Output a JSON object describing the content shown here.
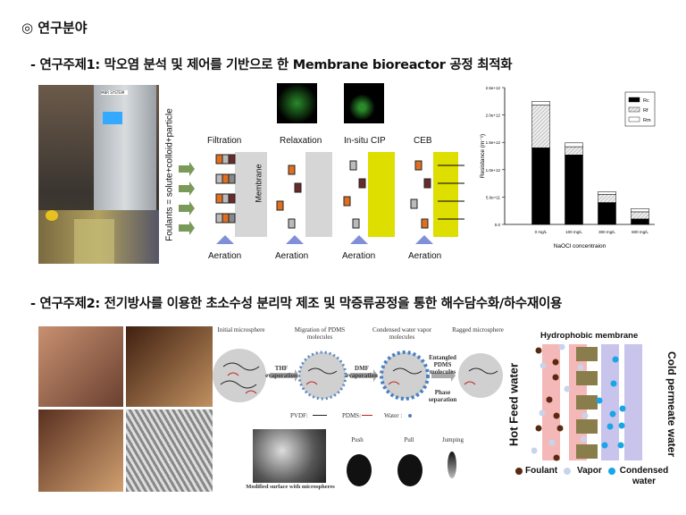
{
  "section_title": "◎ 연구분야",
  "topic1": {
    "title": "- 연구주제1: 막오염 분석 및 제어를 기반으로 한 Membrane bioreactor 공정 최적화",
    "photo_panel_label": "MBR SYSTEM",
    "diagram": {
      "side_label": "Foulants = solute+colloid+particle",
      "stages": [
        "Filtration",
        "Relaxation",
        "In-situ CIP",
        "CEB"
      ],
      "membrane_label": "Membrane",
      "aeration_label": "Aeration"
    }
  },
  "chart_data": {
    "type": "bar",
    "stacked": true,
    "categories": [
      "0 mg/L",
      "100 mg/L",
      "300 mg/L",
      "600 mg/L"
    ],
    "series": [
      {
        "name": "Rc",
        "values": [
          1400000000000.0,
          1270000000000.0,
          400000000000.0,
          100000000000.0
        ],
        "color": "#000000"
      },
      {
        "name": "Rf",
        "values": [
          780000000000.0,
          150000000000.0,
          150000000000.0,
          130000000000.0
        ],
        "color": "#d8d8d8"
      },
      {
        "name": "Rm",
        "values": [
          70000000000.0,
          70000000000.0,
          50000000000.0,
          60000000000.0
        ],
        "color": "#ffffff"
      }
    ],
    "xlabel": "NaOCl concentraion",
    "ylabel": "Resistance (m⁻¹)",
    "ylim": [
      0,
      2500000000000.0
    ],
    "yticks": [
      "0.0",
      "5.0e+11",
      "1.0e+12",
      "1.5e+12",
      "2.0e+12",
      "2.5e+12"
    ],
    "legend_position": "top-right",
    "grid": false
  },
  "topic2": {
    "title": "- 연구주제2: 전기방사를 이용한 초소수성 분리막 제조 및 막증류공정을 통한 해수담수화/하수재이용",
    "scheme": {
      "stages": [
        "Initial microsphere",
        "Migration of PDMS molecules",
        "Condensed water vapor molecules",
        "Ragged microsphere"
      ],
      "arrows": [
        "THF evaporation",
        "DMF evaporation",
        "Entangled PDMS molecules",
        "Phase separation"
      ],
      "legend": [
        "PVDF:",
        "PDMS:",
        "Water :"
      ],
      "sem_caption": "Modified surface with microspheres",
      "drop_labels": [
        "Push",
        "Pull",
        "Jumping"
      ]
    },
    "md": {
      "title": "Hydrophobic membrane",
      "left_label": "Hot Feed water",
      "right_label": "Cold permeate water",
      "legend": [
        "Foulant",
        "Vapor",
        "Condensed water"
      ],
      "colors": {
        "foulant": "#5a2a10",
        "vapor": "#c8d4ea",
        "condensed": "#19a6e6",
        "membrane": "#8a7d4c"
      }
    }
  }
}
